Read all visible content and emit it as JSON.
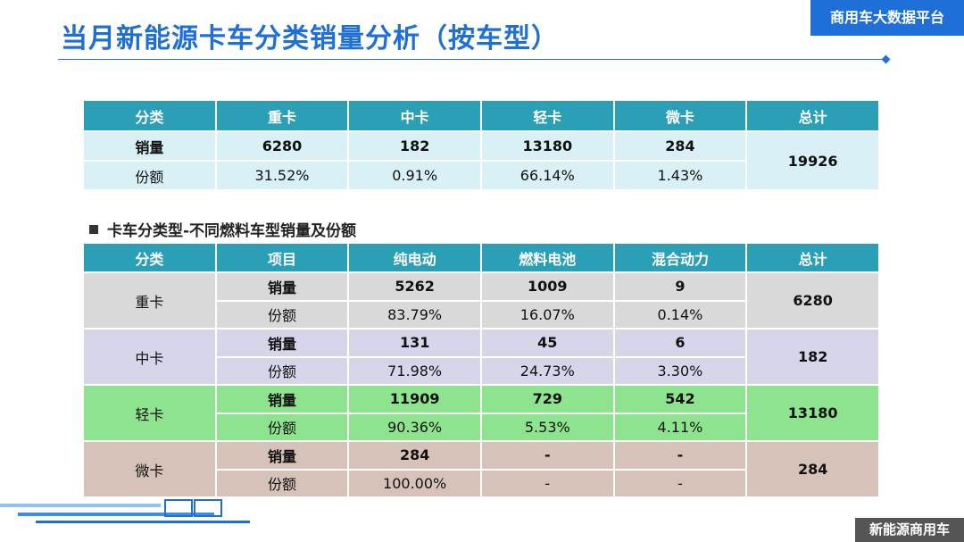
{
  "header": {
    "title": "当月新能源卡车分类销量分析（按车型）",
    "badge": "商用车大数据平台"
  },
  "table1": {
    "headers": [
      "分类",
      "重卡",
      "中卡",
      "轻卡",
      "微卡",
      "总计"
    ],
    "rows": [
      [
        "销量",
        "6280",
        "182",
        "13180",
        "284"
      ],
      [
        "份额",
        "31.52%",
        "0.91%",
        "66.14%",
        "1.43%"
      ]
    ],
    "total": "19926"
  },
  "section_title": "卡车分类型-不同燃料车型销量及份额",
  "table2": {
    "headers": [
      "分类",
      "项目",
      "纯电动",
      "燃料电池",
      "混合动力",
      "总计"
    ],
    "groups": [
      {
        "name": "重卡",
        "total": "6280",
        "rows": [
          [
            "销量",
            "5262",
            "1009",
            "9"
          ],
          [
            "份额",
            "83.79%",
            "16.07%",
            "0.14%"
          ]
        ]
      },
      {
        "name": "中卡",
        "total": "182",
        "rows": [
          [
            "销量",
            "131",
            "45",
            "6"
          ],
          [
            "份额",
            "71.98%",
            "24.73%",
            "3.30%"
          ]
        ]
      },
      {
        "name": "轻卡",
        "total": "13180",
        "rows": [
          [
            "销量",
            "11909",
            "729",
            "542"
          ],
          [
            "份额",
            "90.36%",
            "5.53%",
            "4.11%"
          ]
        ]
      },
      {
        "name": "微卡",
        "total": "284",
        "rows": [
          [
            "销量",
            "284",
            "-",
            "-"
          ],
          [
            "份额",
            "100.00%",
            "-",
            "-"
          ]
        ]
      }
    ]
  },
  "footer": {
    "label": "新能源商用车"
  }
}
